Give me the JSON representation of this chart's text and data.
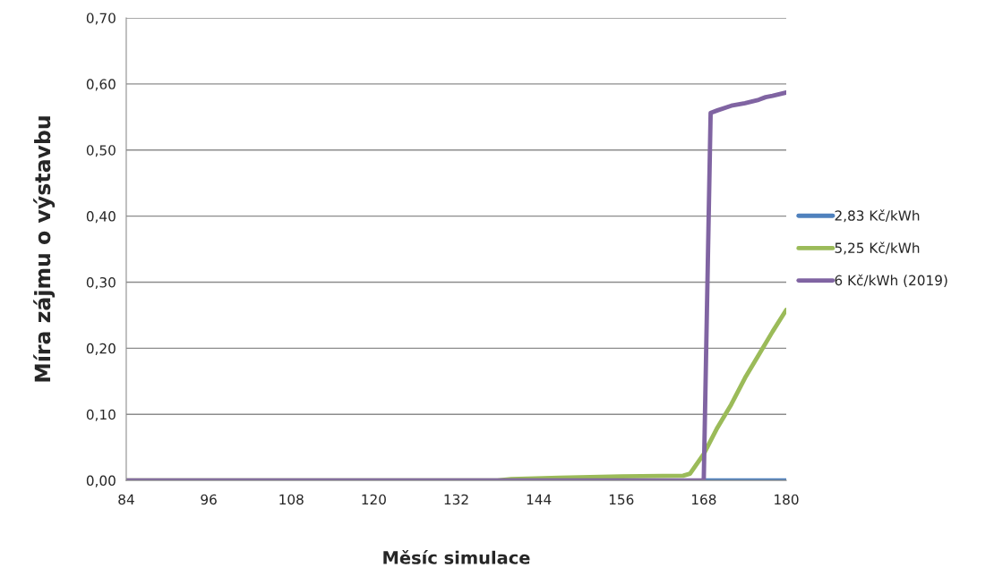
{
  "chart_data": {
    "type": "line",
    "xlabel": "Měsíc simulace",
    "ylabel": "Míra zájmu o výstavbu",
    "xlim": [
      84,
      180
    ],
    "xticks": [
      84,
      96,
      108,
      120,
      132,
      144,
      156,
      168,
      180
    ],
    "ylim": [
      0,
      0.7
    ],
    "yticks": [
      {
        "value": 0,
        "label": "0,00"
      },
      {
        "value": 0.1,
        "label": "0,10"
      },
      {
        "value": 0.2,
        "label": "0,20"
      },
      {
        "value": 0.3,
        "label": "0,30"
      },
      {
        "value": 0.4,
        "label": "0,40"
      },
      {
        "value": 0.5,
        "label": "0,50"
      },
      {
        "value": 0.6,
        "label": "0,60"
      },
      {
        "value": 0.7,
        "label": "0,70"
      }
    ],
    "grid": "y",
    "legend": "right",
    "marker": "none",
    "line_style": "solid",
    "series": [
      {
        "name": "2,83 Kč/kWh",
        "color": "#4f81bd",
        "x": [
          168,
          180
        ],
        "values": [
          0,
          0
        ]
      },
      {
        "name": "5,25 Kč/kWh",
        "color": "#9bbb59",
        "x": [
          84,
          138,
          140,
          147,
          156,
          165,
          166,
          168,
          170,
          172,
          174,
          176,
          178,
          180
        ],
        "values": [
          0,
          0,
          0.002,
          0.004,
          0.006,
          0.007,
          0.01,
          0.04,
          0.08,
          0.115,
          0.155,
          0.19,
          0.225,
          0.258
        ]
      },
      {
        "name": "6 Kč/kWh (2019)",
        "color": "#8064a2",
        "x": [
          84,
          168,
          169,
          170,
          172,
          174,
          176,
          177,
          178,
          180
        ],
        "values": [
          0,
          0,
          0.556,
          0.56,
          0.567,
          0.571,
          0.576,
          0.58,
          0.582,
          0.587
        ]
      }
    ]
  }
}
